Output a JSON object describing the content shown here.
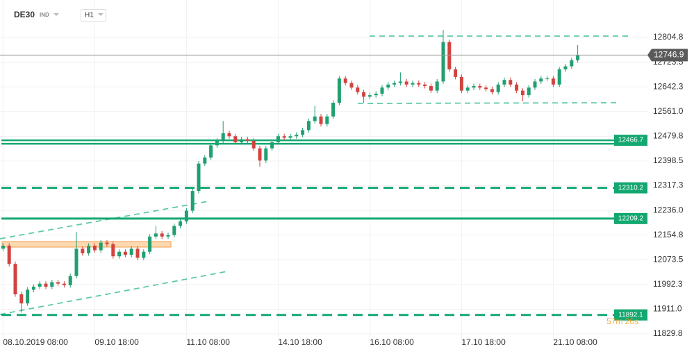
{
  "header": {
    "symbol": "DE30",
    "market": "IND",
    "timeframe": "H1"
  },
  "chart_data": {
    "type": "candlestick",
    "x": [
      1,
      3,
      5,
      7,
      9,
      11,
      13,
      15,
      17,
      19,
      21,
      23,
      25,
      27,
      29,
      31,
      33,
      35,
      37,
      39,
      41,
      43,
      45,
      47,
      49,
      51,
      53,
      55,
      57,
      59,
      61,
      63,
      65,
      67,
      69,
      71,
      73,
      75,
      77,
      79,
      81,
      83,
      85,
      87,
      89,
      91,
      93,
      95,
      97,
      99,
      101,
      103,
      105,
      107,
      109,
      111,
      113,
      115,
      117,
      119,
      121,
      123,
      125,
      127,
      129,
      131,
      133,
      135,
      137,
      139,
      141,
      143,
      145,
      147,
      149,
      151,
      153,
      155,
      157,
      159,
      161,
      163,
      165,
      167,
      169,
      171,
      173,
      175,
      177,
      179,
      181,
      183,
      185,
      187,
      189
    ],
    "open": [
      12110,
      12120,
      12060,
      11960,
      11930,
      11975,
      11985,
      11995,
      11985,
      12000,
      11995,
      11990,
      12020,
      12110,
      12095,
      12120,
      12105,
      12130,
      12125,
      12085,
      12100,
      12090,
      12110,
      12080,
      12100,
      12150,
      12160,
      12150,
      12155,
      12185,
      12200,
      12235,
      12300,
      12390,
      12410,
      12450,
      12465,
      12490,
      12480,
      12460,
      12470,
      12465,
      12440,
      12400,
      12440,
      12460,
      12480,
      12475,
      12480,
      12485,
      12500,
      12530,
      12545,
      12520,
      12545,
      12590,
      12670,
      12655,
      12640,
      12625,
      12610,
      12615,
      12620,
      12640,
      12650,
      12655,
      12660,
      12650,
      12655,
      12650,
      12645,
      12630,
      12660,
      12790,
      12700,
      12675,
      12630,
      12640,
      12645,
      12640,
      12635,
      12625,
      12650,
      12665,
      12650,
      12630,
      12615,
      12640,
      12660,
      12670,
      12670,
      12650,
      12700,
      12710,
      12730
    ],
    "high": [
      12128,
      12128,
      12068,
      11968,
      11983,
      11993,
      12003,
      12003,
      12008,
      12008,
      12003,
      12028,
      12165,
      12118,
      12128,
      12128,
      12138,
      12138,
      12133,
      12108,
      12108,
      12118,
      12118,
      12108,
      12158,
      12185,
      12168,
      12163,
      12193,
      12208,
      12243,
      12308,
      12398,
      12418,
      12458,
      12473,
      12530,
      12498,
      12488,
      12478,
      12478,
      12473,
      12448,
      12448,
      12468,
      12488,
      12488,
      12488,
      12493,
      12508,
      12538,
      12580,
      12553,
      12553,
      12598,
      12678,
      12678,
      12663,
      12648,
      12633,
      12623,
      12628,
      12648,
      12658,
      12663,
      12690,
      12668,
      12663,
      12663,
      12658,
      12653,
      12668,
      12830,
      12798,
      12708,
      12683,
      12648,
      12653,
      12653,
      12648,
      12643,
      12658,
      12673,
      12673,
      12658,
      12638,
      12648,
      12668,
      12678,
      12678,
      12678,
      12708,
      12718,
      12738,
      12780
    ],
    "low": [
      12102,
      12052,
      11952,
      11900,
      11922,
      11967,
      11977,
      11977,
      11977,
      11987,
      11982,
      11982,
      12012,
      12087,
      12087,
      12097,
      12097,
      12117,
      12077,
      12077,
      12082,
      12082,
      12072,
      12072,
      12092,
      12142,
      12142,
      12142,
      12147,
      12177,
      12192,
      12227,
      12292,
      12382,
      12402,
      12442,
      12457,
      12472,
      12452,
      12452,
      12457,
      12432,
      12380,
      12392,
      12432,
      12452,
      12467,
      12467,
      12472,
      12477,
      12492,
      12522,
      12512,
      12512,
      12537,
      12582,
      12647,
      12632,
      12617,
      12590,
      12602,
      12607,
      12612,
      12632,
      12642,
      12647,
      12642,
      12642,
      12642,
      12637,
      12622,
      12622,
      12652,
      12692,
      12667,
      12622,
      12622,
      12632,
      12632,
      12627,
      12617,
      12617,
      12642,
      12642,
      12622,
      12595,
      12607,
      12632,
      12652,
      12662,
      12642,
      12642,
      12692,
      12702,
      12722
    ],
    "close": [
      12120,
      12060,
      11960,
      11930,
      11975,
      11985,
      11995,
      11985,
      12000,
      11995,
      11990,
      12020,
      12110,
      12095,
      12120,
      12105,
      12130,
      12125,
      12085,
      12100,
      12090,
      12110,
      12080,
      12100,
      12150,
      12160,
      12150,
      12155,
      12185,
      12200,
      12235,
      12300,
      12390,
      12410,
      12450,
      12465,
      12490,
      12480,
      12460,
      12470,
      12465,
      12440,
      12400,
      12440,
      12460,
      12480,
      12475,
      12480,
      12485,
      12500,
      12530,
      12545,
      12520,
      12545,
      12590,
      12670,
      12655,
      12640,
      12625,
      12610,
      12615,
      12620,
      12640,
      12650,
      12655,
      12660,
      12650,
      12655,
      12650,
      12645,
      12630,
      12660,
      12790,
      12700,
      12675,
      12630,
      12640,
      12645,
      12640,
      12635,
      12625,
      12650,
      12665,
      12650,
      12630,
      12615,
      12640,
      12660,
      12670,
      12670,
      12650,
      12700,
      12710,
      12730,
      12747
    ],
    "up_color": "#20a070",
    "down_color": "#d2433f",
    "xlim": [
      0,
      212
    ],
    "xticks": [
      {
        "value": 1,
        "label": "08.10.2019 08:00"
      },
      {
        "value": 31,
        "label": "09.10 18:00"
      },
      {
        "value": 61,
        "label": "11.10 08:00"
      },
      {
        "value": 91,
        "label": "14.10 18:00"
      },
      {
        "value": 121,
        "label": "16.10 08:00"
      },
      {
        "value": 151,
        "label": "17.10 18:00"
      },
      {
        "value": 181,
        "label": "21.10 08:00"
      }
    ],
    "ylim": [
      11809.3,
      12928.1
    ],
    "yticks": [
      12804.8,
      12723.5,
      12642.3,
      {
        "value": 12561,
        "label": "12561.0"
      },
      12479.8,
      12398.5,
      12317.3,
      {
        "value": 12236,
        "label": "12236.0"
      },
      12154.8,
      12073.5,
      11992.3,
      {
        "value": 11911,
        "label": "11911.0"
      },
      11829.8
    ],
    "grid": true,
    "last_price": 12746.9,
    "levels": [
      {
        "value": 12466.7,
        "style": "double"
      },
      {
        "value": 12310.2,
        "style": "dashed"
      },
      {
        "value": 12209.2,
        "style": "solid"
      },
      {
        "value": 11892.1,
        "style": "dashed"
      }
    ],
    "level_color": "#13a870",
    "countdown": "57m 26s"
  }
}
